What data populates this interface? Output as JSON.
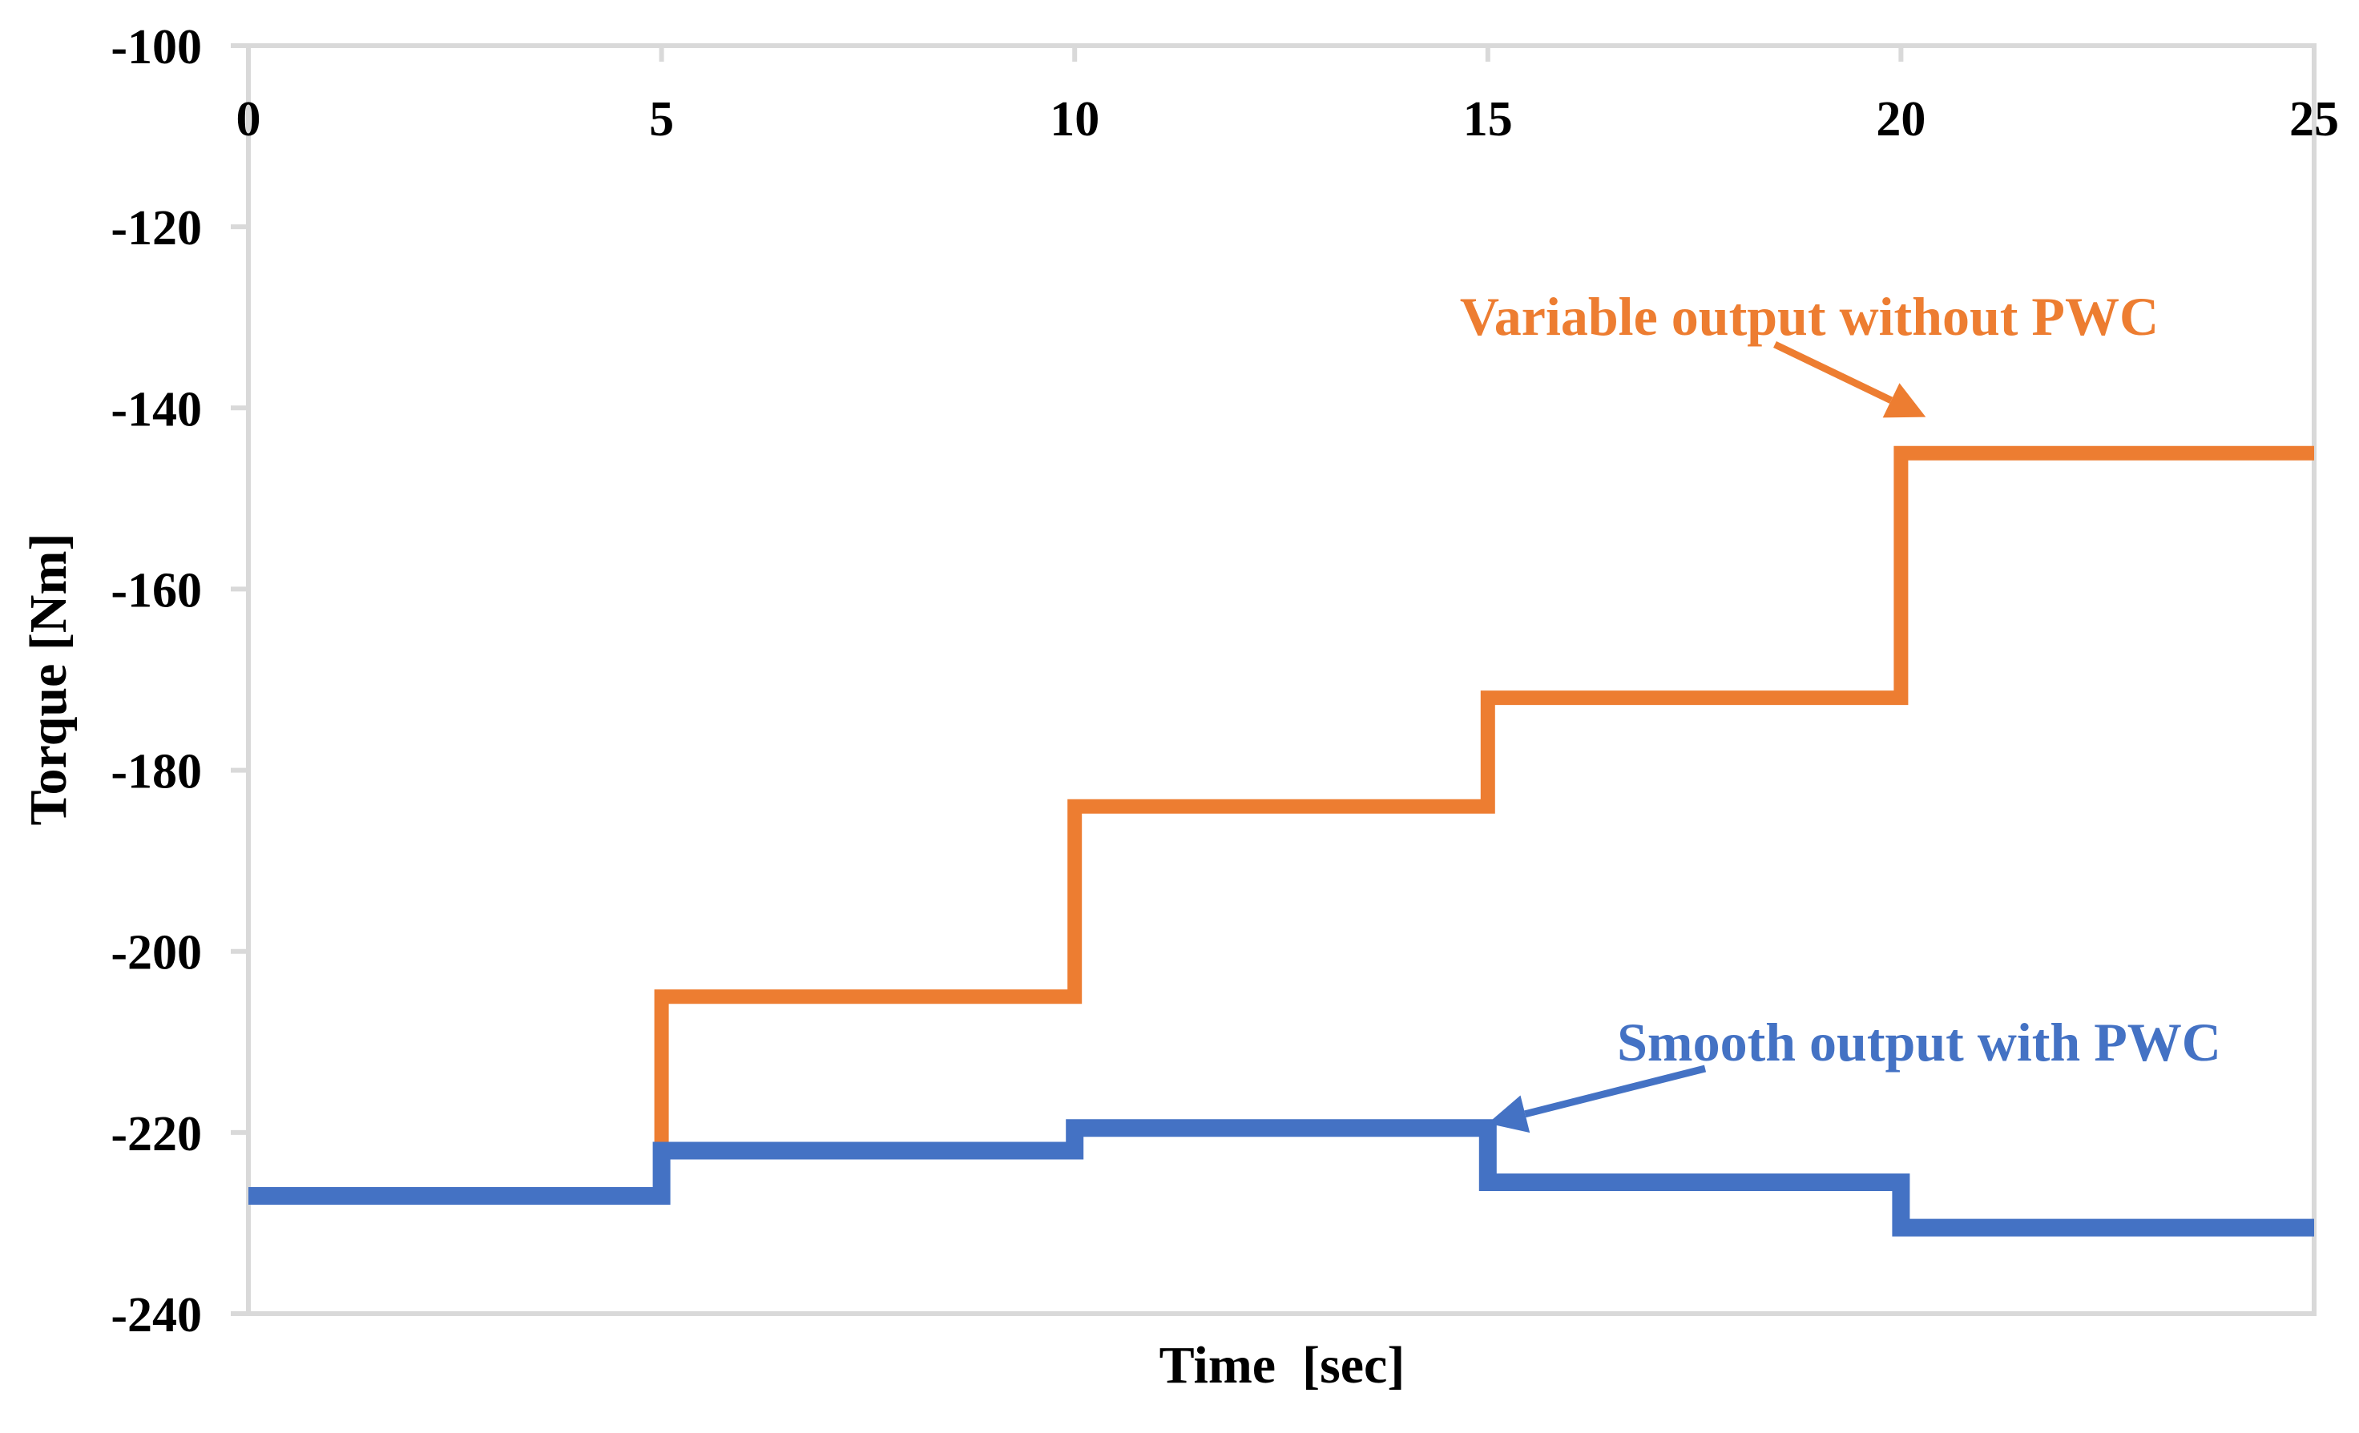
{
  "chart_data": {
    "type": "line",
    "step": true,
    "xlabel": "Time  [sec]",
    "ylabel": "Torque [Nm]",
    "xlim": [
      0,
      25
    ],
    "ylim": [
      -240,
      -100
    ],
    "x_ticks": [
      0,
      5,
      10,
      15,
      20,
      25
    ],
    "y_ticks": [
      -100,
      -120,
      -140,
      -160,
      -180,
      -200,
      -220,
      -240
    ],
    "x_axis_position": "top",
    "grid": false,
    "series": [
      {
        "name": "Variable output without PWC",
        "color": "#ED7D31",
        "x": [
          0,
          5,
          5,
          10,
          10,
          15,
          15,
          20,
          20,
          25
        ],
        "y": [
          -227,
          -227,
          -205,
          -205,
          -184,
          -184,
          -172,
          -172,
          -145,
          -145
        ]
      },
      {
        "name": "Smooth output with PWC",
        "color": "#4472C4",
        "x": [
          0,
          5,
          5,
          10,
          10,
          15,
          15,
          20,
          20,
          25
        ],
        "y": [
          -227,
          -227,
          -222,
          -222,
          -219.5,
          -219.5,
          -225.5,
          -225.5,
          -230.5,
          -230.5
        ]
      }
    ],
    "annotations": [
      {
        "text": "Variable output without PWC",
        "color": "#ED7D31",
        "points_to": {
          "x": 20.3,
          "y": -141
        }
      },
      {
        "text": "Smooth output with PWC",
        "color": "#4472C4",
        "points_to": {
          "x": 15.0,
          "y": -219
        }
      }
    ]
  }
}
